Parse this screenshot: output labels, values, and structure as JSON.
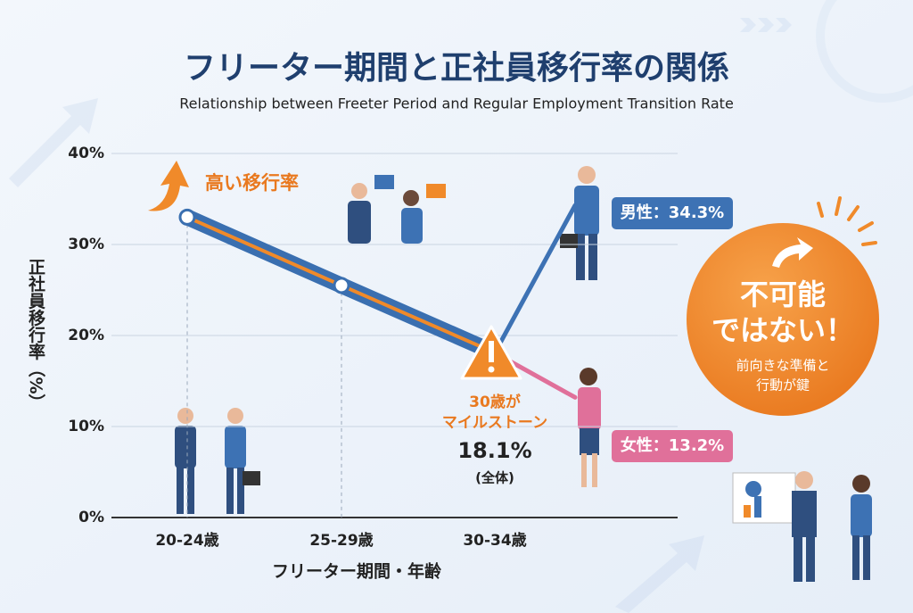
{
  "chart_data": {
    "type": "line",
    "title": "フリーター期間と正社員移行率の関係",
    "subtitle": "Relationship between Freeter Period and Regular Employment Transition Rate",
    "x_label": "フリーター期間・年齢",
    "y_label": "正社員移行率（%）",
    "categories": [
      "20-24歳",
      "25-29歳",
      "30-34歳",
      null
    ],
    "series": [
      {
        "name": "(全体)",
        "color": "#3a6fb0",
        "values": [
          33,
          25.5,
          18.1,
          null
        ],
        "value_labels": [
          null,
          null,
          "18.1%",
          null
        ]
      },
      {
        "color": "#3d72b4",
        "values": [
          null,
          null,
          18.1,
          34.3
        ],
        "value_labels": [
          null,
          null,
          null,
          "男性：34.3%"
        ]
      },
      {
        "color": "#e0709a",
        "values": [
          null,
          null,
          18.1,
          13.2
        ],
        "value_labels": [
          null,
          null,
          null,
          "女性：13.2%"
        ]
      }
    ],
    "ylim": [
      0,
      40
    ],
    "yticks": [
      {
        "value": 0,
        "label": "0%"
      },
      {
        "value": 10,
        "label": "10%"
      },
      {
        "value": 20,
        "label": "20%"
      },
      {
        "value": 30,
        "label": "30%"
      },
      {
        "value": 40,
        "label": "40%"
      }
    ],
    "grid": true,
    "annotations": {
      "high": "高い移行率",
      "milestone": [
        "30歳が",
        "マイルストーン"
      ],
      "callout_title": [
        "不可能",
        "ではない！"
      ],
      "callout_text": [
        "前向きな準備と",
        "行動が鍵"
      ]
    }
  }
}
